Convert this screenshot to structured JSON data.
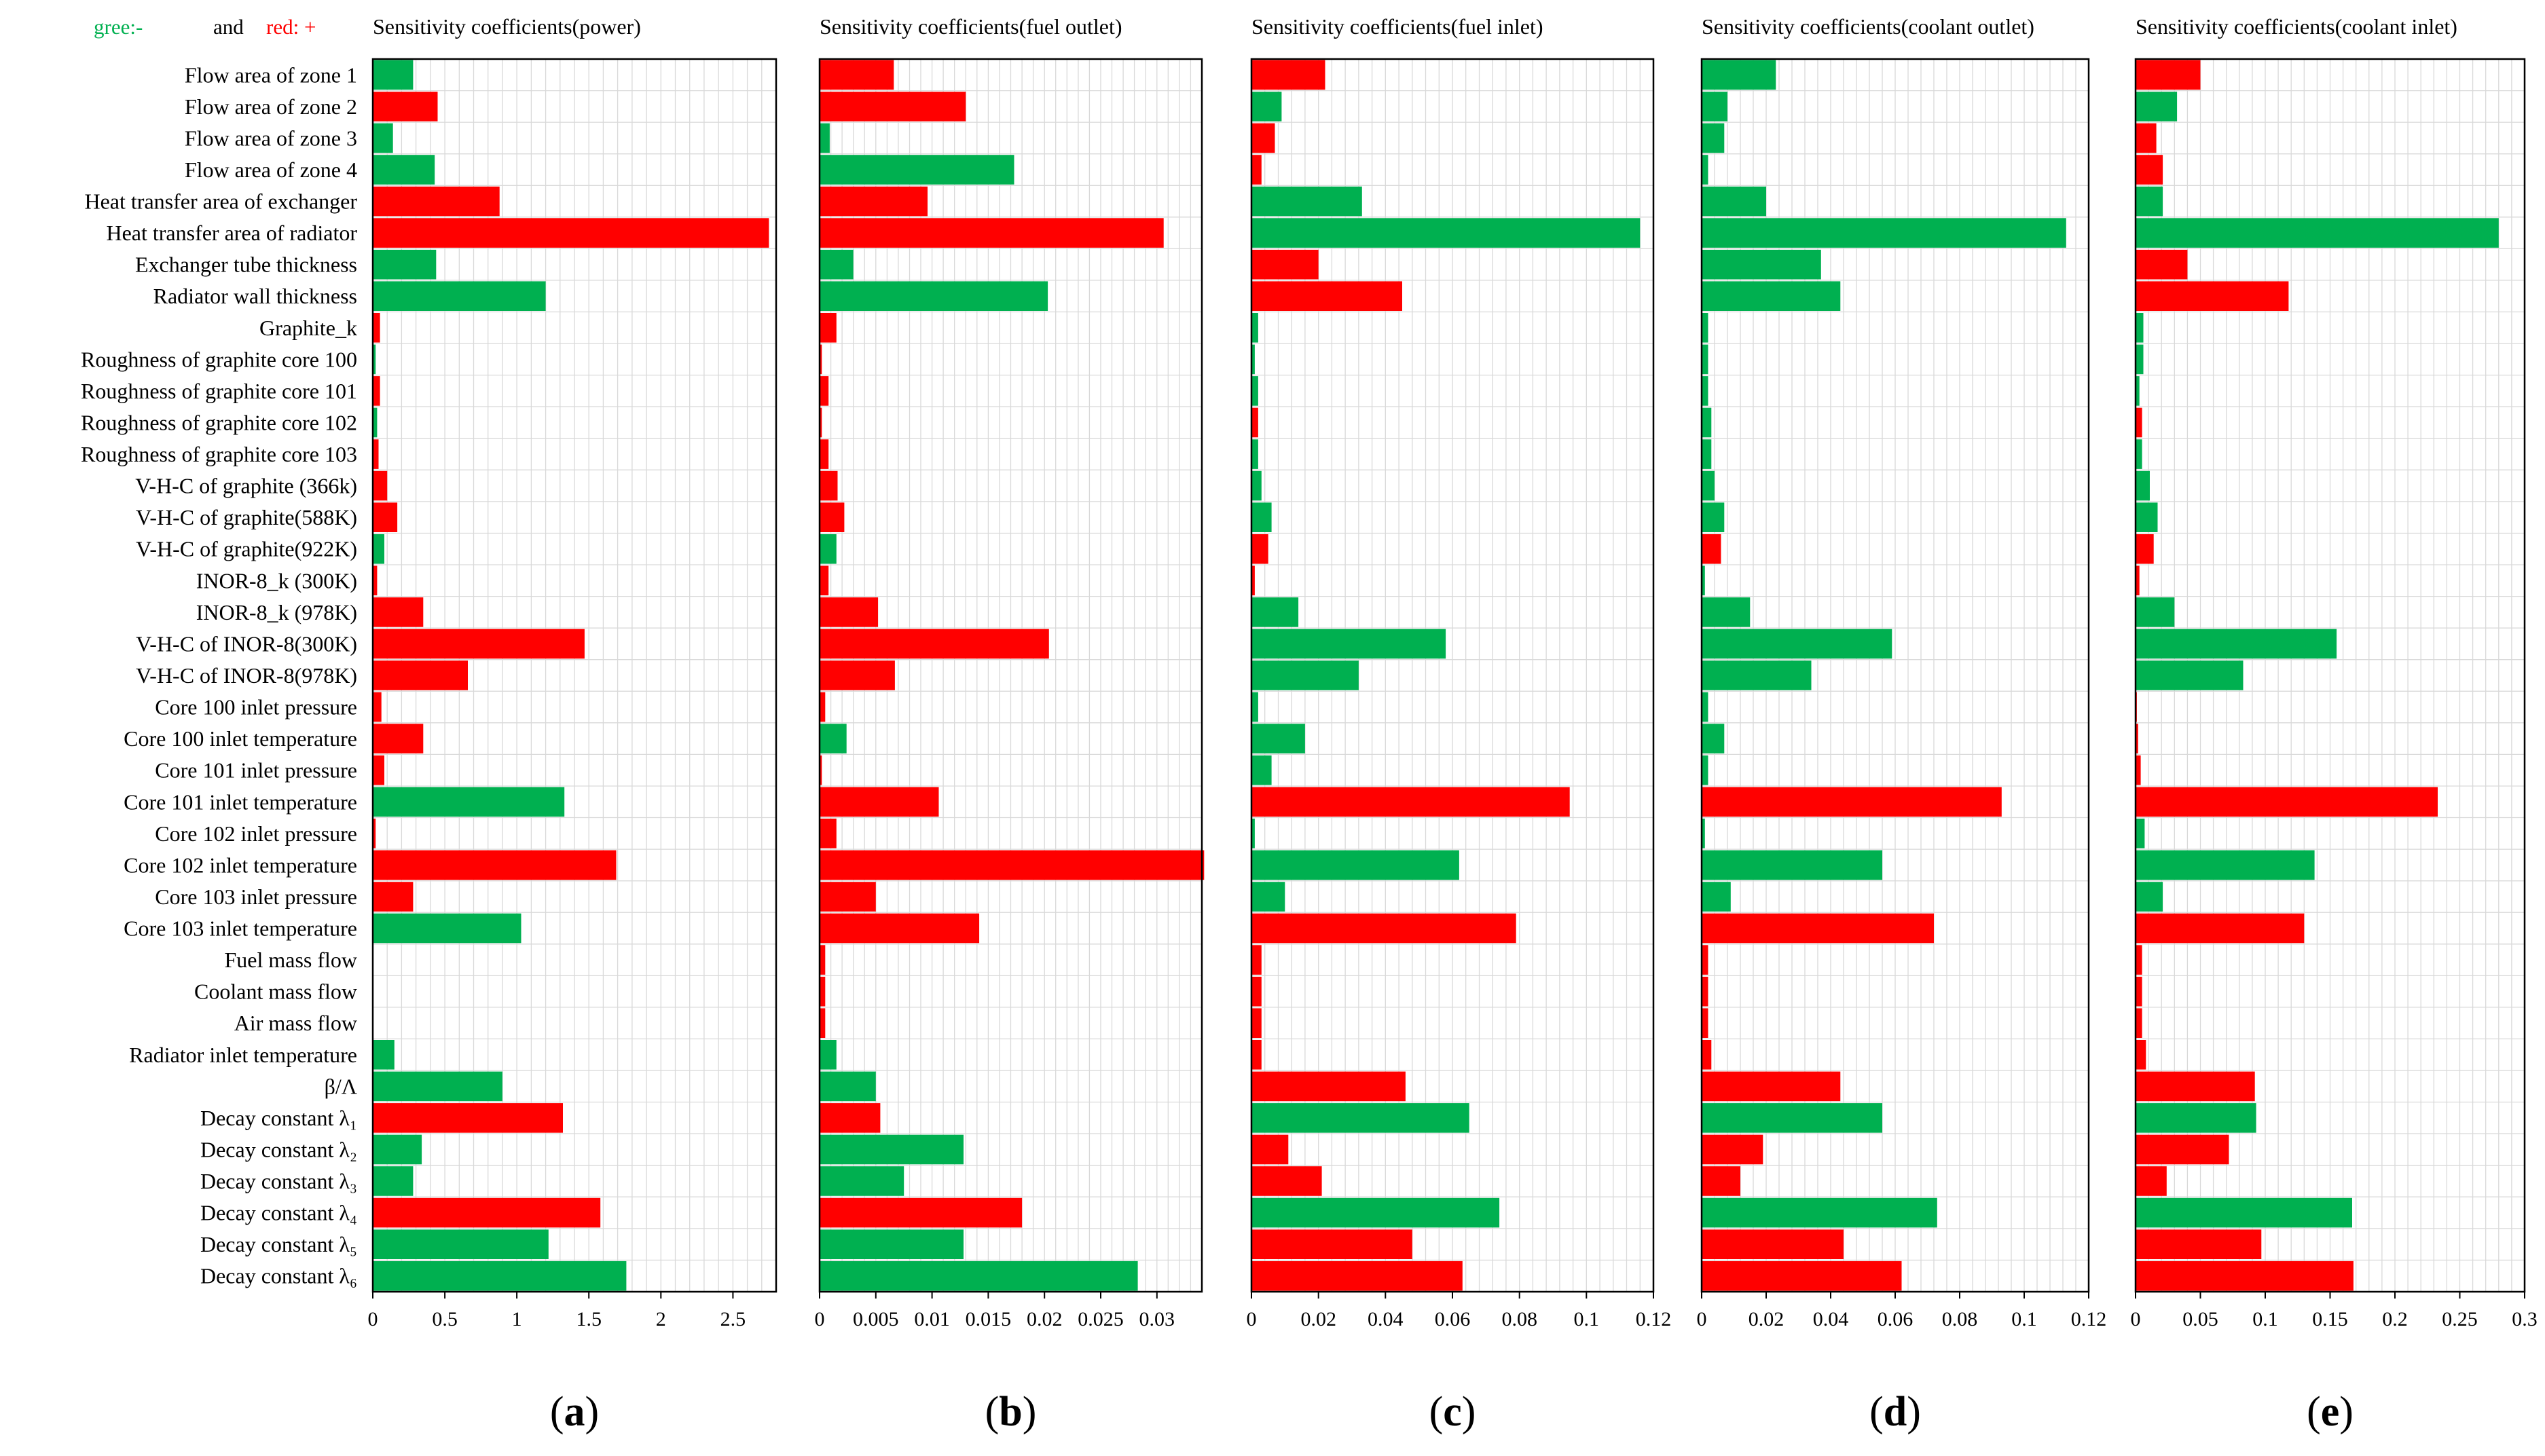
{
  "legend": {
    "green_text": "gree:-",
    "and_text": "and",
    "red_text": "red: +",
    "green_color": "#00b050",
    "red_color": "#ff0000"
  },
  "colors": {
    "positive": "#ff0000",
    "negative": "#00b050",
    "grid": "#d9d9d9",
    "axis": "#000000"
  },
  "parameters": [
    "Flow area of zone 1",
    "Flow area of zone 2",
    "Flow area of zone 3",
    "Flow area of zone 4",
    "Heat transfer area of exchanger",
    "Heat transfer area of radiator",
    "Exchanger tube thickness",
    "Radiator wall thickness",
    "Graphite_k",
    "Roughness of graphite core 100",
    "Roughness of graphite core 101",
    "Roughness of graphite core 102",
    "Roughness of graphite core 103",
    "V-H-C of graphite (366k)",
    "V-H-C of graphite(588K)",
    "V-H-C of graphite(922K)",
    "INOR-8_k (300K)",
    "INOR-8_k (978K)",
    "V-H-C of INOR-8(300K)",
    "V-H-C of INOR-8(978K)",
    "Core 100 inlet pressure",
    "Core 100 inlet temperature",
    "Core 101 inlet pressure",
    "Core 101 inlet temperature",
    "Core 102 inlet pressure",
    "Core 102 inlet temperature",
    "Core 103 inlet pressure",
    "Core 103 inlet temperature",
    "Fuel mass flow",
    "Coolant mass flow",
    "Air mass flow",
    "Radiator inlet temperature",
    "β/Λ",
    "Decay constant λ₁",
    "Decay constant λ₂",
    "Decay constant λ₃",
    "Decay constant λ₄",
    "Decay constant λ₅",
    "Decay constant λ₆"
  ],
  "chart_data": [
    {
      "type": "bar",
      "orientation": "horizontal",
      "panel_label": "(a)",
      "title": "Sensitivity coefficients(power)",
      "xlim": [
        0,
        2.8
      ],
      "ticks": [
        0,
        0.5,
        1,
        1.5,
        2,
        2.5
      ],
      "tick_labels": [
        "0",
        "0.5",
        "1",
        "1.5",
        "2",
        "2.5"
      ],
      "grid_step": 0.1,
      "values": [
        0.28,
        0.45,
        0.14,
        0.43,
        0.88,
        2.75,
        0.44,
        1.2,
        0.05,
        0.02,
        0.05,
        0.03,
        0.04,
        0.1,
        0.17,
        0.08,
        0.03,
        0.35,
        1.47,
        0.66,
        0.06,
        0.35,
        0.08,
        1.33,
        0.02,
        1.69,
        0.28,
        1.03,
        0,
        0,
        0,
        0.15,
        0.9,
        1.32,
        0.34,
        0.28,
        1.58,
        1.22,
        1.76
      ],
      "signs": [
        "-",
        "+",
        "-",
        "-",
        "+",
        "+",
        "-",
        "-",
        "+",
        "-",
        "+",
        "-",
        "+",
        "+",
        "+",
        "-",
        "+",
        "+",
        "+",
        "+",
        "+",
        "+",
        "+",
        "-",
        "+",
        "+",
        "+",
        "-",
        "+",
        "+",
        "+",
        "-",
        "-",
        "+",
        "-",
        "-",
        "+",
        "-",
        "-"
      ]
    },
    {
      "type": "bar",
      "orientation": "horizontal",
      "panel_label": "(b)",
      "title": "Sensitivity coefficients(fuel outlet)",
      "xlim": [
        0,
        0.034
      ],
      "ticks": [
        0,
        0.005,
        0.01,
        0.015,
        0.02,
        0.025,
        0.03
      ],
      "tick_labels": [
        "0",
        "0.005",
        "0.01",
        "0.015",
        "0.02",
        "0.025",
        "0.03"
      ],
      "grid_step": 0.001,
      "values": [
        0.0066,
        0.013,
        0.0009,
        0.0173,
        0.0096,
        0.0306,
        0.003,
        0.0203,
        0.0015,
        0.0002,
        0.0008,
        0.0002,
        0.0008,
        0.0016,
        0.0022,
        0.0015,
        0.0008,
        0.0052,
        0.0204,
        0.0067,
        0.0005,
        0.0024,
        0.0002,
        0.0106,
        0.0015,
        0.0342,
        0.005,
        0.0142,
        0.0005,
        0.0005,
        0.0005,
        0.0015,
        0.005,
        0.0054,
        0.0128,
        0.0075,
        0.018,
        0.0128,
        0.0283
      ],
      "signs": [
        "+",
        "+",
        "-",
        "-",
        "+",
        "+",
        "-",
        "-",
        "+",
        "+",
        "+",
        "+",
        "+",
        "+",
        "+",
        "-",
        "+",
        "+",
        "+",
        "+",
        "+",
        "-",
        "+",
        "+",
        "+",
        "+",
        "+",
        "+",
        "+",
        "+",
        "+",
        "-",
        "-",
        "+",
        "-",
        "-",
        "+",
        "-",
        "-"
      ]
    },
    {
      "type": "bar",
      "orientation": "horizontal",
      "panel_label": "(c)",
      "title": "Sensitivity coefficients(fuel inlet)",
      "xlim": [
        0,
        0.12
      ],
      "ticks": [
        0,
        0.02,
        0.04,
        0.06,
        0.08,
        0.1,
        0.12
      ],
      "tick_labels": [
        "0",
        "0.02",
        "0.04",
        "0.06",
        "0.08",
        "0.1",
        "0.12"
      ],
      "grid_step": 0.004,
      "values": [
        0.022,
        0.009,
        0.007,
        0.003,
        0.033,
        0.116,
        0.02,
        0.045,
        0.002,
        0.001,
        0.002,
        0.002,
        0.002,
        0.003,
        0.006,
        0.005,
        0.001,
        0.014,
        0.058,
        0.032,
        0.002,
        0.016,
        0.006,
        0.095,
        0.001,
        0.062,
        0.01,
        0.079,
        0.003,
        0.003,
        0.003,
        0.003,
        0.046,
        0.065,
        0.011,
        0.021,
        0.074,
        0.048,
        0.063
      ],
      "signs": [
        "+",
        "-",
        "+",
        "+",
        "-",
        "-",
        "+",
        "+",
        "-",
        "-",
        "-",
        "+",
        "-",
        "-",
        "-",
        "+",
        "+",
        "-",
        "-",
        "-",
        "-",
        "-",
        "-",
        "+",
        "-",
        "-",
        "-",
        "+",
        "+",
        "+",
        "+",
        "+",
        "+",
        "-",
        "+",
        "+",
        "-",
        "+",
        "+"
      ]
    },
    {
      "type": "bar",
      "orientation": "horizontal",
      "panel_label": "(d)",
      "title": "Sensitivity coefficients(coolant outlet)",
      "xlim": [
        0,
        0.12
      ],
      "ticks": [
        0,
        0.02,
        0.04,
        0.06,
        0.08,
        0.1,
        0.12
      ],
      "tick_labels": [
        "0",
        "0.02",
        "0.04",
        "0.06",
        "0.08",
        "0.1",
        "0.12"
      ],
      "grid_step": 0.004,
      "values": [
        0.023,
        0.008,
        0.007,
        0.002,
        0.02,
        0.113,
        0.037,
        0.043,
        0.002,
        0.002,
        0.002,
        0.003,
        0.003,
        0.004,
        0.007,
        0.006,
        0.001,
        0.015,
        0.059,
        0.034,
        0.002,
        0.007,
        0.002,
        0.093,
        0.001,
        0.056,
        0.009,
        0.072,
        0.002,
        0.002,
        0.002,
        0.003,
        0.043,
        0.056,
        0.019,
        0.012,
        0.073,
        0.044,
        0.062
      ],
      "signs": [
        "-",
        "-",
        "-",
        "-",
        "-",
        "-",
        "-",
        "-",
        "-",
        "-",
        "-",
        "-",
        "-",
        "-",
        "-",
        "+",
        "-",
        "-",
        "-",
        "-",
        "-",
        "-",
        "-",
        "+",
        "-",
        "-",
        "-",
        "+",
        "+",
        "+",
        "+",
        "+",
        "+",
        "-",
        "+",
        "+",
        "-",
        "+",
        "+"
      ]
    },
    {
      "type": "bar",
      "orientation": "horizontal",
      "panel_label": "(e)",
      "title": "Sensitivity coefficients(coolant inlet)",
      "xlim": [
        0,
        0.3
      ],
      "ticks": [
        0,
        0.05,
        0.1,
        0.15,
        0.2,
        0.25,
        0.3
      ],
      "tick_labels": [
        "0",
        "0.05",
        "0.1",
        "0.15",
        "0.2",
        "0.25",
        "0.3"
      ],
      "grid_step": 0.01,
      "values": [
        0.05,
        0.032,
        0.016,
        0.021,
        0.021,
        0.28,
        0.04,
        0.118,
        0.006,
        0.006,
        0.003,
        0.005,
        0.005,
        0.011,
        0.017,
        0.014,
        0.003,
        0.03,
        0.155,
        0.083,
        0.001,
        0.002,
        0.004,
        0.233,
        0.007,
        0.138,
        0.021,
        0.13,
        0.005,
        0.005,
        0.005,
        0.008,
        0.092,
        0.093,
        0.072,
        0.024,
        0.167,
        0.097,
        0.168
      ],
      "signs": [
        "+",
        "-",
        "+",
        "+",
        "-",
        "-",
        "+",
        "+",
        "-",
        "-",
        "-",
        "+",
        "-",
        "-",
        "-",
        "+",
        "+",
        "-",
        "-",
        "-",
        "+",
        "+",
        "+",
        "+",
        "-",
        "-",
        "-",
        "+",
        "+",
        "+",
        "+",
        "+",
        "+",
        "-",
        "+",
        "+",
        "-",
        "+",
        "+"
      ]
    }
  ]
}
